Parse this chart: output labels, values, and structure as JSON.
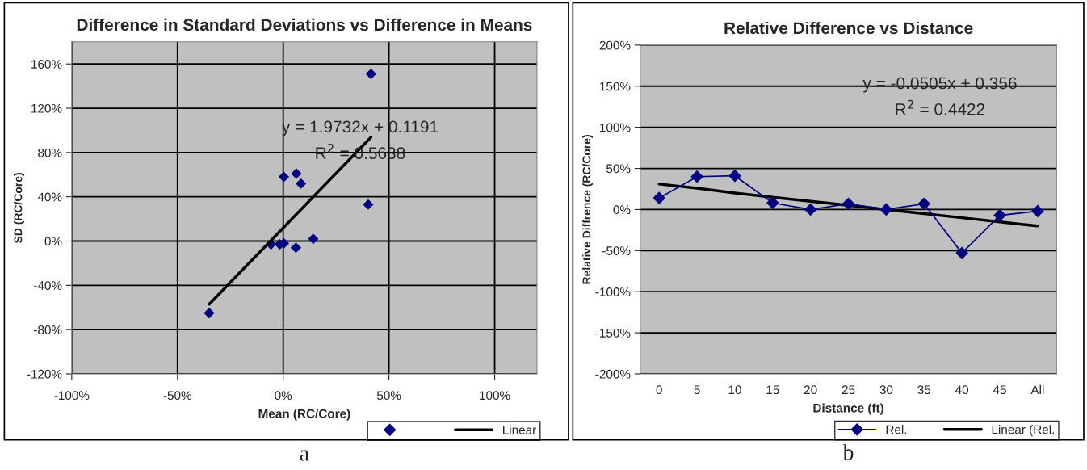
{
  "chart_data": [
    {
      "type": "scatter",
      "title": "Difference in Standard Deviations vs Difference in Means",
      "xlabel": "Mean (RC/Core)",
      "ylabel": "SD (RC/Core)",
      "xlim": [
        -100,
        120
      ],
      "xticks": [
        {
          "value": -100,
          "label": "-100%"
        },
        {
          "value": -50,
          "label": "-50%"
        },
        {
          "value": 0,
          "label": "0%"
        },
        {
          "value": 50,
          "label": "50%"
        },
        {
          "value": 100,
          "label": "100%"
        }
      ],
      "ylim": [
        -120,
        180
      ],
      "yticks": [
        {
          "value": -120,
          "label": "-120%"
        },
        {
          "value": -80,
          "label": "-80%"
        },
        {
          "value": -40,
          "label": "-40%"
        },
        {
          "value": 0,
          "label": "0%"
        },
        {
          "value": 40,
          "label": "40%"
        },
        {
          "value": 80,
          "label": "80%"
        },
        {
          "value": 120,
          "label": "120%"
        },
        {
          "value": 160,
          "label": "160%"
        }
      ],
      "grid": true,
      "legend": "bottom right",
      "marker": "diamond",
      "series": [
        {
          "color": "#000080",
          "x": [
            41.5,
            0.3,
            6.2,
            8.4,
            40.2,
            -5.8,
            -1.6,
            0.3,
            6.0,
            14.2,
            -35
          ],
          "values": [
            151,
            58,
            61,
            52,
            33,
            -3,
            -3,
            -2,
            -6,
            2,
            -65
          ]
        },
        {
          "name": "Linear",
          "type": "line",
          "marker": "none",
          "color": "#000000",
          "x": [
            -35,
            41.5
          ],
          "values": [
            -57.1,
            93.8
          ]
        }
      ],
      "annotations": [
        "y = 1.9732x + 0.1191",
        "R$^{2}$ = 0.5638",
        "a"
      ]
    },
    {
      "type": "line",
      "title": "Relative Difference vs Distance",
      "xlabel": "Distance (ft)",
      "ylabel": "Relative Diffrence (RC/Core)",
      "categories": [
        "0",
        "5",
        "10",
        "15",
        "20",
        "25",
        "30",
        "35",
        "40",
        "45",
        "All"
      ],
      "ylim": [
        -200,
        200
      ],
      "yticks": [
        {
          "value": -200,
          "label": "-200%"
        },
        {
          "value": -150,
          "label": "-150%"
        },
        {
          "value": -100,
          "label": "-100%"
        },
        {
          "value": -50,
          "label": "-50%"
        },
        {
          "value": 0,
          "label": "0%"
        },
        {
          "value": 50,
          "label": "50%"
        },
        {
          "value": 100,
          "label": "100%"
        },
        {
          "value": 150,
          "label": "150%"
        },
        {
          "value": 200,
          "label": "200%"
        }
      ],
      "grid": "y",
      "legend": "bottom right",
      "marker": "diamond",
      "series": [
        {
          "name": "Rel.",
          "color": "#000080",
          "values": [
            14,
            40,
            41,
            8,
            0,
            7,
            0,
            7,
            -53,
            -7,
            -2
          ]
        },
        {
          "name": "Linear (Rel.",
          "color": "#000000",
          "marker": "none",
          "values": [
            31,
            26,
            20,
            15,
            10,
            5,
            0,
            -5,
            -10,
            -15,
            -20
          ]
        }
      ],
      "annotations": [
        "y = -0.0505x + 0.356",
        "R$^{2}$ = 0.4422",
        "b"
      ]
    }
  ]
}
